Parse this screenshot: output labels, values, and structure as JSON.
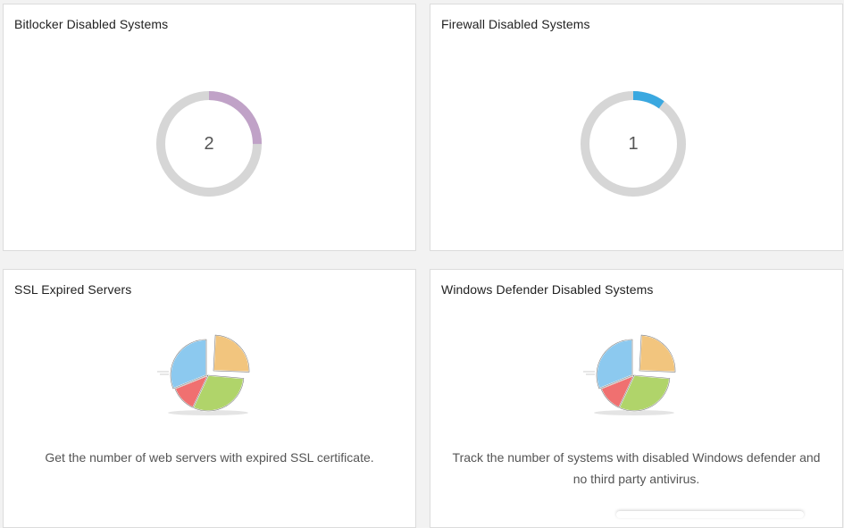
{
  "colors": {
    "ring_track": "#d6d6d6",
    "bitlocker_accent": "#c0a2c7",
    "firewall_accent": "#3aa8e0",
    "pie_blue": "#8cc9ef",
    "pie_orange": "#f2c57e",
    "pie_green": "#b0d46a",
    "pie_red": "#f07070"
  },
  "cards": {
    "bitlocker": {
      "title": "Bitlocker Disabled Systems",
      "value": "2",
      "fraction": 0.25
    },
    "firewall": {
      "title": "Firewall Disabled Systems",
      "value": "1",
      "fraction": 0.1
    },
    "ssl": {
      "title": "SSL Expired Servers",
      "icon": "pie-chart-illustration-icon",
      "description": "Get the number of web servers with expired SSL certificate."
    },
    "defender": {
      "title": "Windows Defender Disabled Systems",
      "icon": "pie-chart-illustration-icon",
      "description_line1": "Track the number of systems with disabled Windows defender and",
      "description_line2": "no third party antivirus."
    }
  }
}
